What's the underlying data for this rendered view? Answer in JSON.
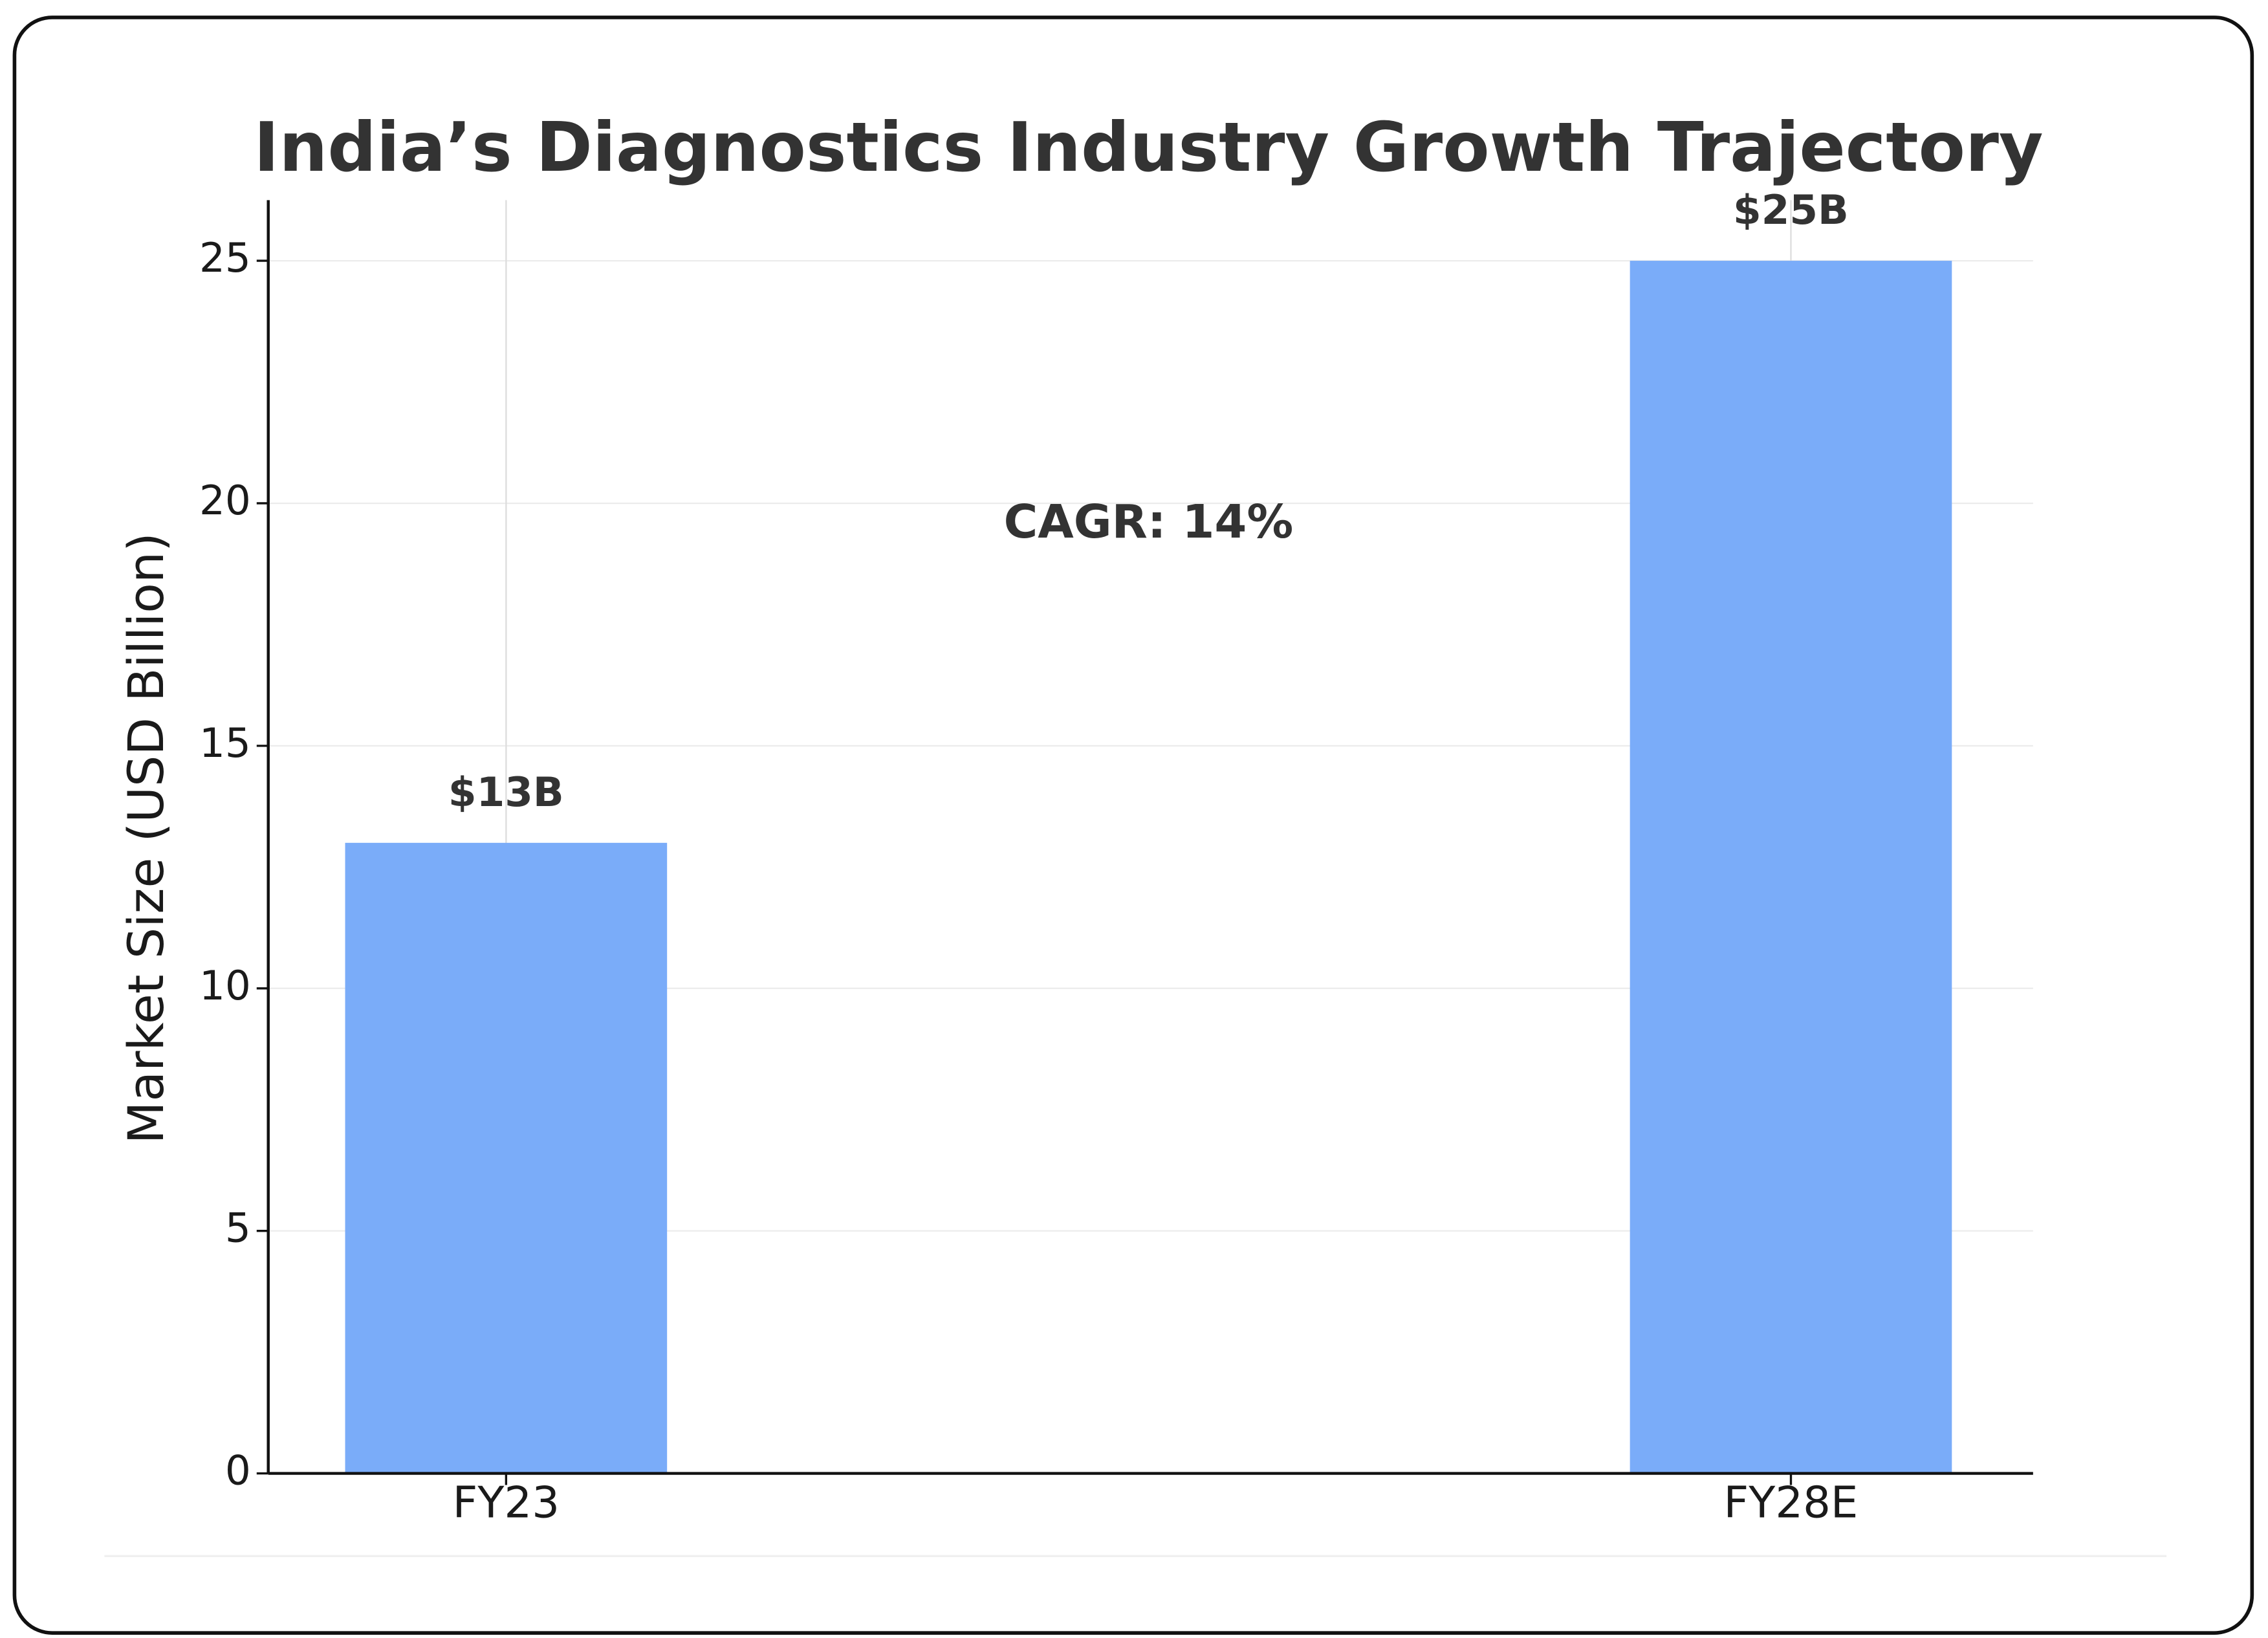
{
  "chart_data": {
    "type": "bar",
    "title": "India’s Diagnostics Industry Growth Trajectory",
    "y_label": "Market Size (USD Billion)",
    "categories": [
      "FY23",
      "FY28E"
    ],
    "values": [
      13,
      25
    ],
    "value_labels": [
      "$13B",
      "$25B"
    ],
    "color": "#7aacf9",
    "ylim": [
      0,
      26.25
    ],
    "yticks": [
      0,
      5,
      10,
      15,
      20,
      25
    ],
    "grid": true,
    "annotations": [
      {
        "text": "CAGR: 14%"
      }
    ]
  }
}
